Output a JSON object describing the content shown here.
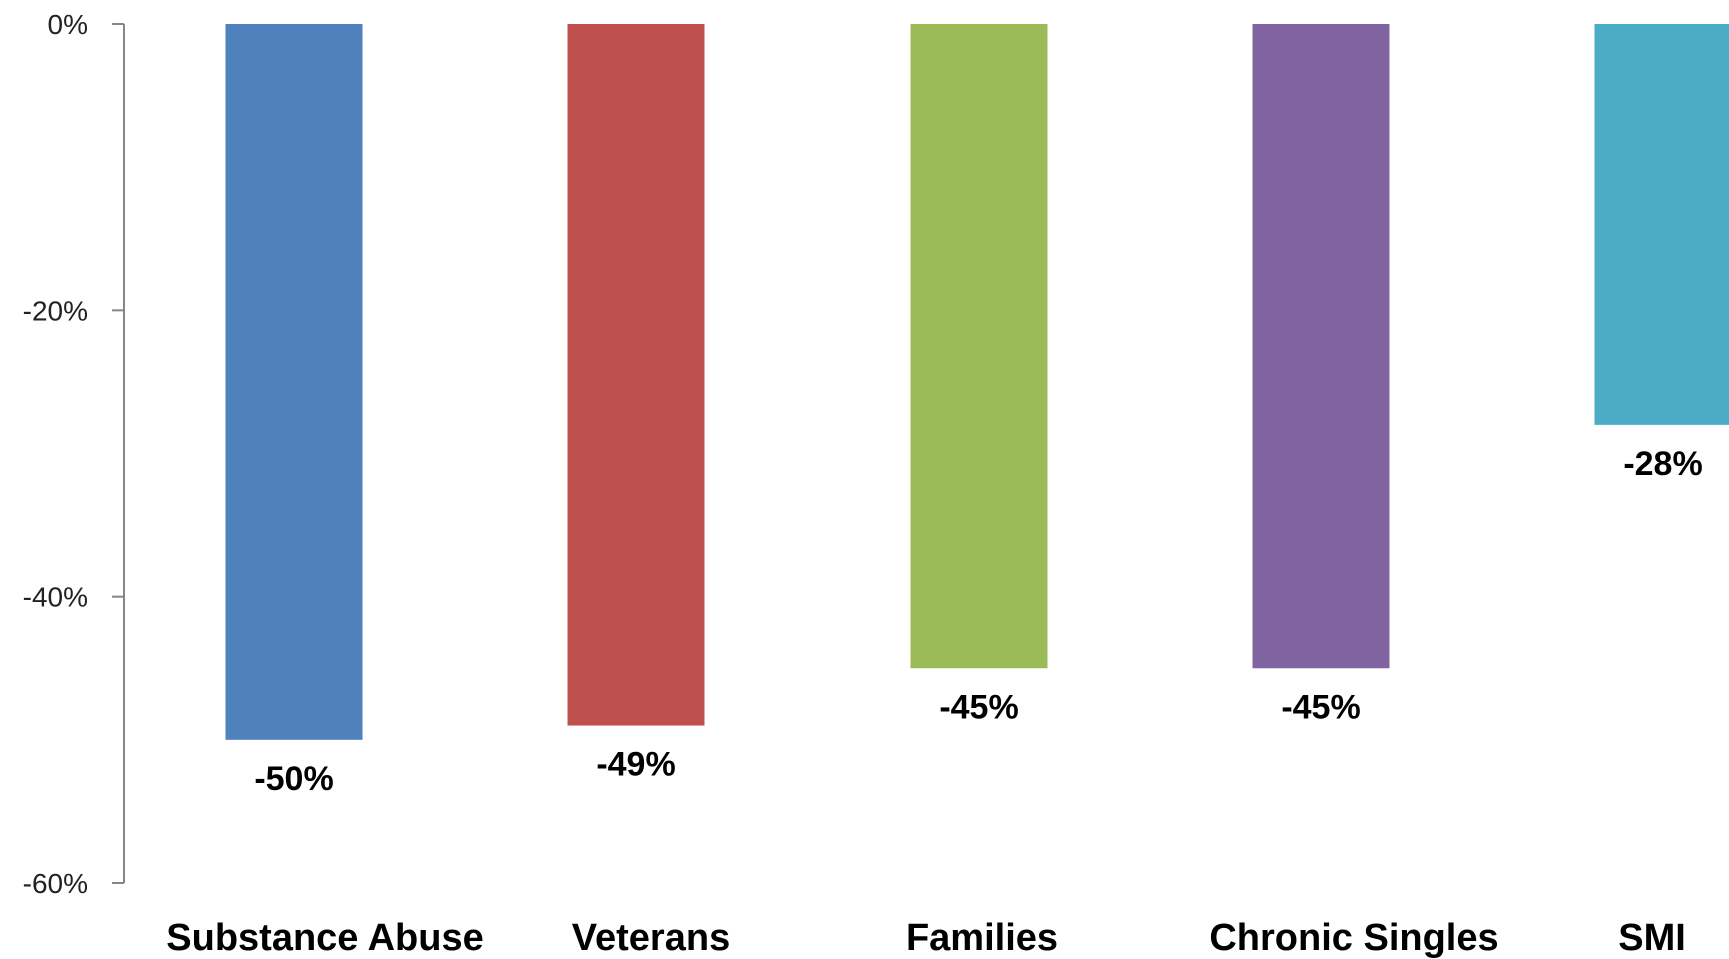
{
  "chart_data": {
    "type": "bar",
    "title": "",
    "xlabel": "",
    "ylabel": "",
    "categories": [
      "Substance Abuse",
      "Veterans",
      "Families",
      "Chronic Singles",
      "SMI"
    ],
    "values": [
      -50,
      -49,
      -45,
      -45,
      -28
    ],
    "value_labels": [
      "-50%",
      "-49%",
      "-45%",
      "-45%",
      "-28%"
    ],
    "colors": [
      "#4F81BD",
      "#C0504D",
      "#9BBB59",
      "#8064A2",
      "#4BACC6"
    ],
    "ylim": [
      -60,
      0
    ],
    "yticks": [
      0,
      -20,
      -40,
      -60
    ],
    "ytick_labels": [
      "0%",
      "-20%",
      "-40%",
      "-60%"
    ],
    "grid": false,
    "legend": "none"
  }
}
